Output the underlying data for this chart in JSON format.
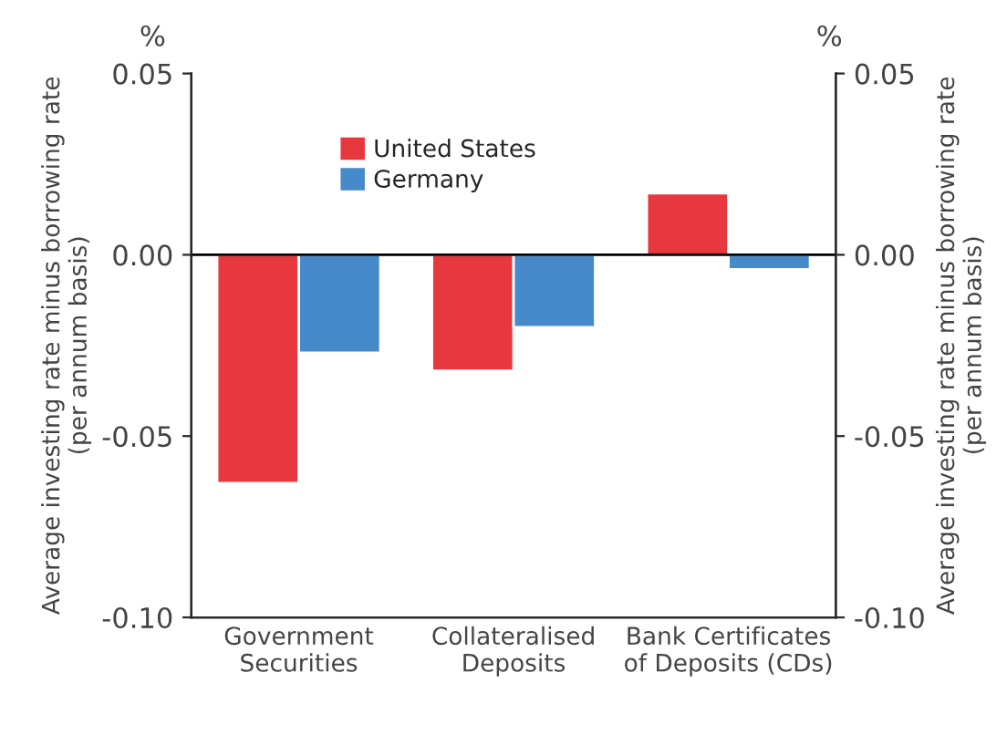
{
  "chart_data": {
    "type": "bar",
    "categories": [
      "Government\nSecurities",
      "Collateralised\nDeposits",
      "Bank Certificates\nof Deposits (CDs)"
    ],
    "series": [
      {
        "name": "United States",
        "color": "#e8383f",
        "values": [
          -0.063,
          -0.032,
          0.017
        ]
      },
      {
        "name": "Germany",
        "color": "#468ac9",
        "values": [
          -0.027,
          -0.02,
          -0.004
        ]
      }
    ],
    "ylabel": "Average investing rate minus borrowing rate\n(per annum basis)",
    "y2label": "Average investing rate minus borrowing rate\n(per annum basis)",
    "ylim": [
      -0.1,
      0.05
    ],
    "yticks": [
      {
        "value": -0.1,
        "label": "-0.10"
      },
      {
        "value": -0.05,
        "label": "-0.05"
      },
      {
        "value": 0,
        "label": "0.00"
      },
      {
        "value": 0.05,
        "label": "0.05"
      }
    ],
    "y2lim": [
      -0.1,
      0.05
    ],
    "y2ticks": [
      {
        "value": -0.1,
        "label": "-0.10"
      },
      {
        "value": -0.05,
        "label": "-0.05"
      },
      {
        "value": 0,
        "label": "0.00"
      },
      {
        "value": 0.05,
        "label": "0.05"
      }
    ],
    "annotations": [
      "%",
      "%"
    ],
    "ref_lines": [
      {
        "axis": "y",
        "value": 0,
        "color": "#000000"
      }
    ],
    "legend": "top left",
    "grid": false
  }
}
